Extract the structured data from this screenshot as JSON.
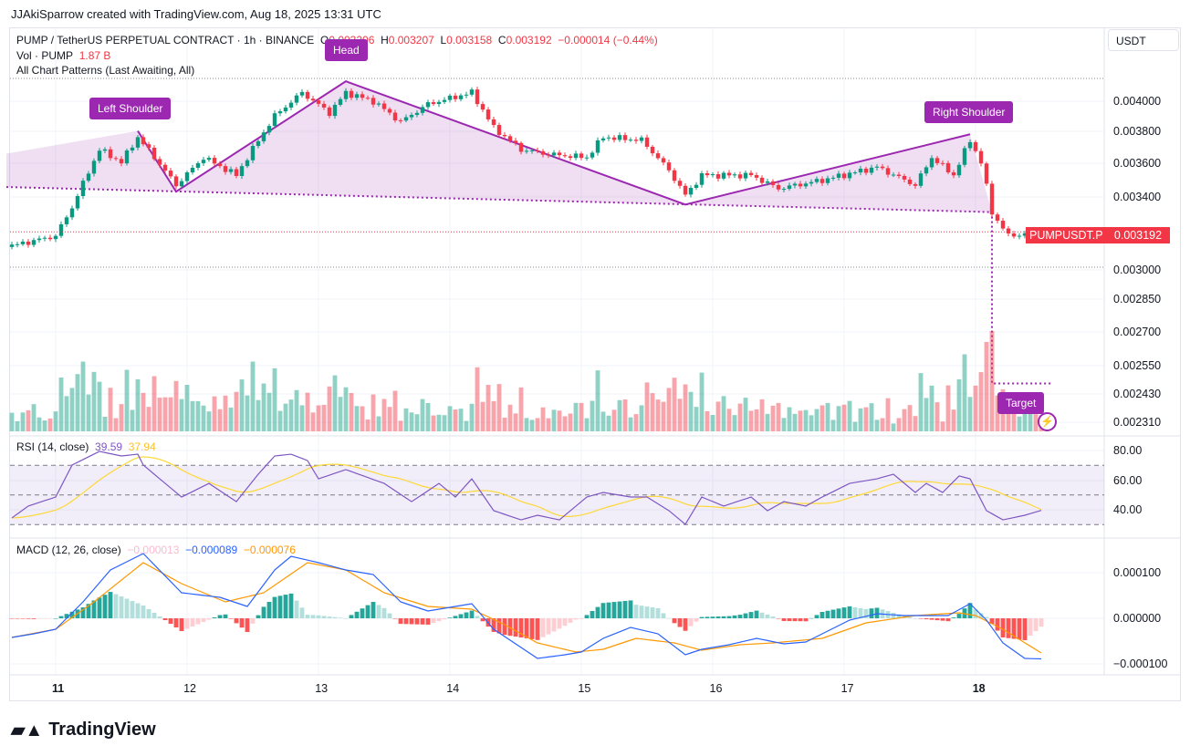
{
  "credit": "JJAkiSparrow created with TradingView.com, Aug 18, 2025 13:31 UTC",
  "legend": {
    "symbol": "PUMP / TetherUS PERPETUAL CONTRACT · 1h · BINANCE",
    "o_label": "O",
    "o": "0.003206",
    "h_label": "H",
    "h": "0.003207",
    "l_label": "L",
    "l": "0.003158",
    "c_label": "C",
    "c": "0.003192",
    "change": "−0.000014 (−0.44%)",
    "vol_label": "Vol · PUMP",
    "vol": "1.87 B",
    "patterns": "All Chart Patterns (Last Awaiting, All)"
  },
  "currency": "USDT",
  "pattern_labels": {
    "left": "Left Shoulder",
    "head": "Head",
    "right": "Right Shoulder",
    "target": "Target"
  },
  "last_price": {
    "symbol": "PUMPUSDT.P",
    "value": "0.003192"
  },
  "price_ticks": [
    "0.004000",
    "0.003800",
    "0.003600",
    "0.003400",
    "0.003000",
    "0.002850",
    "0.002700",
    "0.002550",
    "0.002430",
    "0.002310"
  ],
  "rsi": {
    "label": "RSI (14, close)",
    "value": "39.59",
    "ma": "37.94",
    "ticks": [
      "80.00",
      "60.00",
      "40.00"
    ]
  },
  "macd": {
    "label": "MACD (12, 26, close)",
    "hist": "−0.000013",
    "macd": "−0.000089",
    "signal": "−0.000076",
    "ticks": [
      "0.000100",
      "0.000000",
      "−0.000100"
    ]
  },
  "time_ticks": [
    "11",
    "12",
    "13",
    "14",
    "15",
    "16",
    "17",
    "18"
  ],
  "brand": "TradingView",
  "colors": {
    "up": "#089981",
    "down": "#f23645",
    "pattern": "#9c27b0",
    "rsi": "#7e57c2",
    "rsi_ma": "#fdd835",
    "macd": "#2962ff",
    "signal": "#ff9800"
  },
  "chart_data": {
    "type": "candlestick",
    "x_unit": "hours since Aug 11 00:00",
    "close_keypoints": [
      [
        -9,
        0.00311
      ],
      [
        0,
        0.00317
      ],
      [
        3,
        0.00333
      ],
      [
        8,
        0.00368
      ],
      [
        12,
        0.0036
      ],
      [
        15,
        0.00376
      ],
      [
        22,
        0.00346
      ],
      [
        27,
        0.00363
      ],
      [
        33,
        0.00352
      ],
      [
        40,
        0.0039
      ],
      [
        45,
        0.00406
      ],
      [
        50,
        0.00392
      ],
      [
        53,
        0.00406
      ],
      [
        58,
        0.004
      ],
      [
        63,
        0.00386
      ],
      [
        68,
        0.00398
      ],
      [
        76,
        0.00406
      ],
      [
        80,
        0.00382
      ],
      [
        85,
        0.00368
      ],
      [
        90,
        0.00365
      ],
      [
        97,
        0.00363
      ],
      [
        100,
        0.00376
      ],
      [
        107,
        0.00374
      ],
      [
        112,
        0.00355
      ],
      [
        115,
        0.0034
      ],
      [
        118,
        0.00352
      ],
      [
        127,
        0.00352
      ],
      [
        132,
        0.00344
      ],
      [
        140,
        0.00349
      ],
      [
        150,
        0.00357
      ],
      [
        157,
        0.00346
      ],
      [
        160,
        0.00363
      ],
      [
        164,
        0.00352
      ],
      [
        167,
        0.00374
      ],
      [
        169,
        0.0036
      ],
      [
        171,
        0.0033
      ],
      [
        174,
        0.00317
      ],
      [
        180,
        0.003192
      ]
    ],
    "pattern": {
      "points": [
        [
          -9,
          0.003654
        ],
        [
          15,
          0.0038
        ],
        [
          22,
          0.003422
        ],
        [
          53,
          0.00414
        ],
        [
          115,
          0.003346
        ],
        [
          167,
          0.003778
        ],
        [
          171,
          0.003303
        ]
      ],
      "neckline": [
        [
          -9,
          0.003449
        ],
        [
          171,
          0.003303
        ]
      ],
      "target": 0.002457
    },
    "rsi_keypoints": [
      [
        -8,
        34.5
      ],
      [
        -5,
        42.5
      ],
      [
        0,
        48.6
      ],
      [
        3,
        70.2
      ],
      [
        8,
        79.4
      ],
      [
        12,
        76.3
      ],
      [
        15,
        77.5
      ],
      [
        16,
        70.2
      ],
      [
        19,
        60.9
      ],
      [
        23,
        48.6
      ],
      [
        28,
        57.8
      ],
      [
        33,
        45.5
      ],
      [
        37,
        64
      ],
      [
        40,
        76.3
      ],
      [
        43,
        77.5
      ],
      [
        46,
        73.2
      ],
      [
        48,
        60.9
      ],
      [
        53,
        67.1
      ],
      [
        60,
        57.8
      ],
      [
        65,
        45.5
      ],
      [
        70,
        57.8
      ],
      [
        73,
        48.6
      ],
      [
        76,
        60.9
      ],
      [
        80,
        39.4
      ],
      [
        85,
        33.2
      ],
      [
        88,
        36.3
      ],
      [
        92,
        33.2
      ],
      [
        97,
        48.6
      ],
      [
        100,
        51.7
      ],
      [
        105,
        48.6
      ],
      [
        108,
        48.6
      ],
      [
        112,
        39.4
      ],
      [
        115,
        30.2
      ],
      [
        118,
        48.6
      ],
      [
        122,
        42.5
      ],
      [
        127,
        48.6
      ],
      [
        130,
        39.4
      ],
      [
        133,
        45.5
      ],
      [
        137,
        42.5
      ],
      [
        140,
        48.6
      ],
      [
        145,
        57.8
      ],
      [
        150,
        60.9
      ],
      [
        153,
        64
      ],
      [
        157,
        51.7
      ],
      [
        159,
        57.8
      ],
      [
        162,
        51.7
      ],
      [
        165,
        62.8
      ],
      [
        167,
        60.9
      ],
      [
        170,
        39.4
      ],
      [
        173,
        33.2
      ],
      [
        177,
        36.3
      ],
      [
        180,
        39.59
      ]
    ],
    "rsi_range": [
      20,
      95
    ],
    "macd_unit": 1e-06,
    "macd_keypoints": [
      [
        -9,
        -44
      ],
      [
        -4,
        -34
      ],
      [
        0,
        -24
      ],
      [
        5,
        36
      ],
      [
        10,
        106
      ],
      [
        16,
        142
      ],
      [
        23,
        56
      ],
      [
        30,
        46
      ],
      [
        35,
        26
      ],
      [
        40,
        106
      ],
      [
        43,
        136
      ],
      [
        48,
        122
      ],
      [
        53,
        106
      ],
      [
        58,
        96
      ],
      [
        63,
        36
      ],
      [
        68,
        16
      ],
      [
        76,
        32
      ],
      [
        80,
        -24
      ],
      [
        85,
        -64
      ],
      [
        88,
        -88
      ],
      [
        93,
        -80
      ],
      [
        96,
        -74
      ],
      [
        100,
        -44
      ],
      [
        105,
        -20
      ],
      [
        110,
        -34
      ],
      [
        115,
        -80
      ],
      [
        118,
        -68
      ],
      [
        123,
        -58
      ],
      [
        128,
        -44
      ],
      [
        133,
        -56
      ],
      [
        137,
        -52
      ],
      [
        140,
        -34
      ],
      [
        145,
        -4
      ],
      [
        150,
        10
      ],
      [
        155,
        6
      ],
      [
        160,
        6
      ],
      [
        163,
        6
      ],
      [
        167,
        32
      ],
      [
        170,
        -4
      ],
      [
        173,
        -54
      ],
      [
        177,
        -88
      ],
      [
        180,
        -89
      ]
    ],
    "signal_keypoints": [
      [
        -9,
        -44
      ],
      [
        0,
        -24
      ],
      [
        7,
        36
      ],
      [
        16,
        122
      ],
      [
        23,
        76
      ],
      [
        31,
        36
      ],
      [
        38,
        56
      ],
      [
        46,
        122
      ],
      [
        53,
        106
      ],
      [
        60,
        56
      ],
      [
        68,
        26
      ],
      [
        76,
        20
      ],
      [
        82,
        -14
      ],
      [
        88,
        -54
      ],
      [
        95,
        -74
      ],
      [
        100,
        -68
      ],
      [
        106,
        -44
      ],
      [
        113,
        -54
      ],
      [
        118,
        -70
      ],
      [
        125,
        -58
      ],
      [
        131,
        -54
      ],
      [
        140,
        -44
      ],
      [
        148,
        -10
      ],
      [
        157,
        6
      ],
      [
        165,
        12
      ],
      [
        168,
        6
      ],
      [
        173,
        -24
      ],
      [
        180,
        -76
      ]
    ],
    "macd_range": [
      -130,
      160
    ]
  }
}
